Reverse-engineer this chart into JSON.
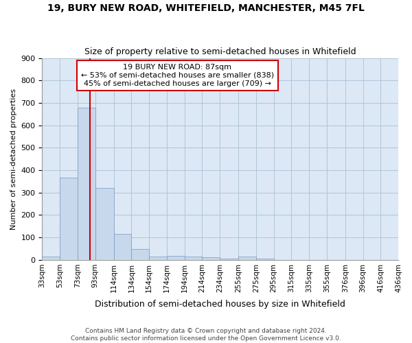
{
  "title": "19, BURY NEW ROAD, WHITEFIELD, MANCHESTER, M45 7FL",
  "subtitle": "Size of property relative to semi-detached houses in Whitefield",
  "xlabel": "Distribution of semi-detached houses by size in Whitefield",
  "ylabel": "Number of semi-detached properties",
  "property_size": 87,
  "annotation_line1": "19 BURY NEW ROAD: 87sqm",
  "annotation_line2": "← 53% of semi-detached houses are smaller (838)",
  "annotation_line3": "45% of semi-detached houses are larger (709) →",
  "footnote1": "Contains HM Land Registry data © Crown copyright and database right 2024.",
  "footnote2": "Contains public sector information licensed under the Open Government Licence v3.0.",
  "bar_color": "#c8d8ec",
  "bar_edge_color": "#7799bb",
  "red_line_color": "#cc0000",
  "annotation_box_color": "#cc0000",
  "background_color": "#ffffff",
  "plot_bg_color": "#dce8f5",
  "grid_color": "#b0c4d8",
  "bins": [
    33,
    53,
    73,
    93,
    114,
    134,
    154,
    174,
    194,
    214,
    234,
    255,
    275,
    295,
    315,
    335,
    355,
    376,
    396,
    416,
    436
  ],
  "counts": [
    15,
    368,
    680,
    322,
    116,
    48,
    16,
    18,
    16,
    13,
    5,
    14,
    5,
    0,
    0,
    0,
    0,
    0,
    0,
    0
  ],
  "ylim": [
    0,
    900
  ],
  "yticks": [
    0,
    100,
    200,
    300,
    400,
    500,
    600,
    700,
    800,
    900
  ]
}
